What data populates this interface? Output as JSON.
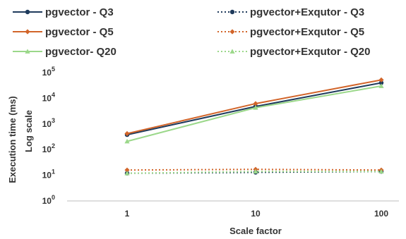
{
  "chart_data": {
    "type": "line",
    "x_scale": "log",
    "y_scale": "log",
    "x": [
      1,
      10,
      100
    ],
    "x_tick_labels": [
      "1",
      "10",
      "100"
    ],
    "y_ticks": [
      {
        "base": "10",
        "exp": "0"
      },
      {
        "base": "10",
        "exp": "1"
      },
      {
        "base": "10",
        "exp": "2"
      },
      {
        "base": "10",
        "exp": "3"
      },
      {
        "base": "10",
        "exp": "4"
      },
      {
        "base": "10",
        "exp": "5"
      }
    ],
    "ylim": [
      1,
      100000
    ],
    "xlabel": "Scale factor",
    "ylabel_line1": "Execution time (ms)",
    "ylabel_line2": "Log scale",
    "grid": false,
    "legend_position": "top",
    "series": [
      {
        "name": "pgvector - Q3",
        "values": [
          380,
          4800,
          40000
        ],
        "color": "#1f3b5c",
        "style": "solid",
        "marker": "circle"
      },
      {
        "name": "pgvector - Q5",
        "values": [
          420,
          6200,
          52000
        ],
        "color": "#d2652a",
        "style": "solid",
        "marker": "diamond"
      },
      {
        "name": "pgvector- Q20",
        "values": [
          210,
          4300,
          30000
        ],
        "color": "#9bd88a",
        "style": "solid",
        "marker": "triangle"
      },
      {
        "name": "pgvector+Exqutor - Q3",
        "values": [
          12,
          13,
          14
        ],
        "color": "#1f3b5c",
        "style": "dotted",
        "marker": "circle"
      },
      {
        "name": "pgvector+Exqutor - Q5",
        "values": [
          16,
          17,
          16
        ],
        "color": "#d2652a",
        "style": "dotted",
        "marker": "diamond"
      },
      {
        "name": "pgvector+Exqutor - Q20",
        "values": [
          12,
          14,
          14
        ],
        "color": "#9bd88a",
        "style": "dotted",
        "marker": "triangle"
      }
    ]
  }
}
